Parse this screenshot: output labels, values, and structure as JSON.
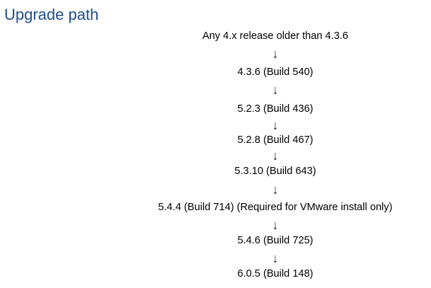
{
  "title": "Upgrade path",
  "steps": [
    "Any 4.x release older than 4.3.6",
    "4.3.6 (Build 540)",
    "5.2.3 (Build 436)",
    "5.2.8 (Build 467)",
    "5.3.10 (Build 643)",
    "5.4.4 (Build 714) (Required for VMware install only)",
    "5.4.6 (Build 725)",
    "6.0.5 (Build 148)"
  ],
  "arrow_glyph": "↓",
  "colors": {
    "title": "#1f4e8c",
    "text": "#000000"
  }
}
